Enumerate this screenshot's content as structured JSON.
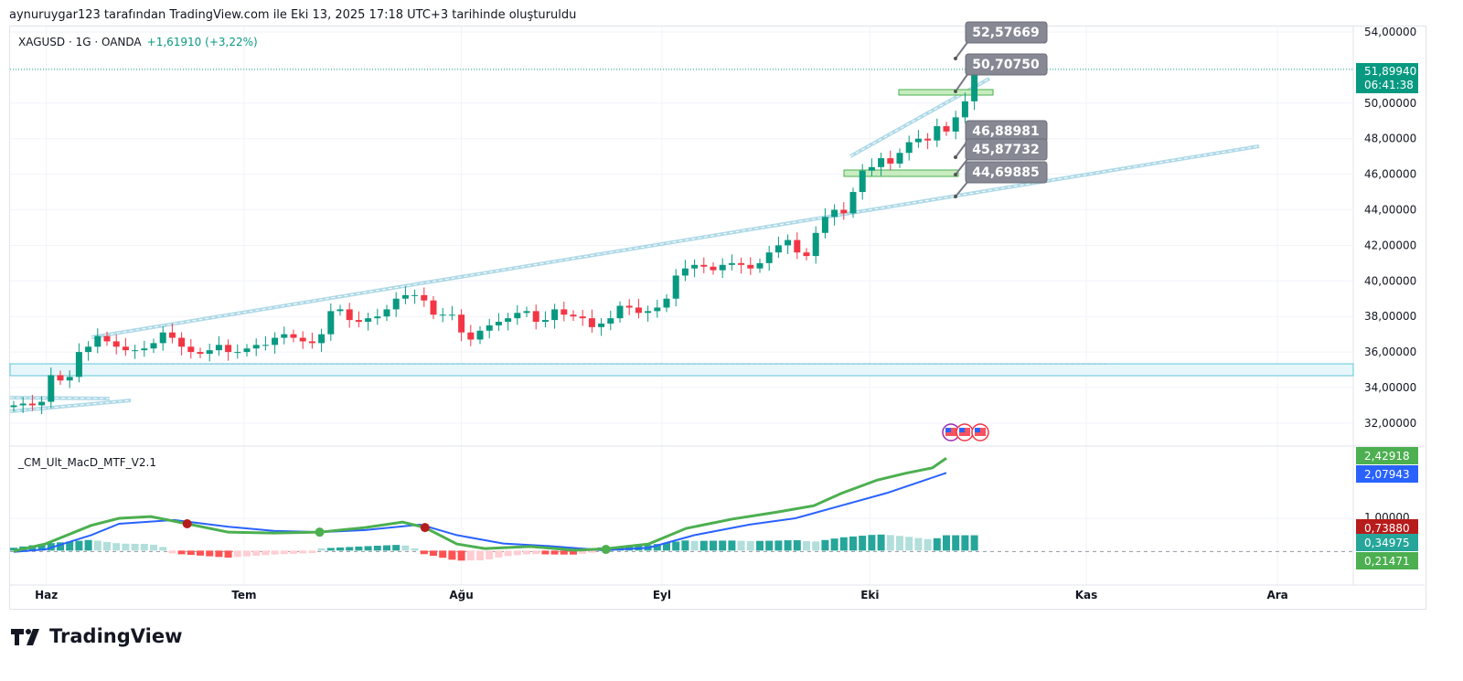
{
  "header": {
    "caption": "aynuruygar123 tarafından TradingView.com ile Eki 13, 2025 17:18 UTC+3 tarihinde oluşturuldu"
  },
  "symbol": {
    "name": "XAGUSD · 1G · OANDA",
    "change": "+1,61910 (+3,22%)"
  },
  "indicator": {
    "name": "_CM_Ult_MacD_MTF_V2.1"
  },
  "brand": {
    "name": "TradingView"
  },
  "colors": {
    "up": "#089981",
    "down": "#f23645",
    "macd": "#4caf50",
    "signal": "#2962ff",
    "trend": "#5fb4d0"
  },
  "chart_data": [
    {
      "type": "candlestick",
      "title": "XAGUSD · 1G · OANDA",
      "ylim": [
        31.5,
        55
      ],
      "price_ticks": [
        "54,00000",
        "50,00000",
        "48,00000",
        "46,00000",
        "44,00000",
        "42,00000",
        "40,00000",
        "38,00000",
        "36,00000",
        "34,00000",
        "32,00000"
      ],
      "price_tick_values": [
        54,
        50,
        48,
        46,
        44,
        42,
        40,
        38,
        36,
        34,
        32
      ],
      "time_ticks": [
        "Haz",
        "Tem",
        "Ağu",
        "Eyl",
        "Eki",
        "Kas",
        "Ara"
      ],
      "time_tick_bar_index": [
        3.5,
        24.7,
        48,
        69.5,
        91.8,
        115,
        135.5
      ],
      "close": [
        33.0,
        33.1,
        33.0,
        33.2,
        34.7,
        34.4,
        34.6,
        36.0,
        36.3,
        36.9,
        36.6,
        36.3,
        36.1,
        36.1,
        36.2,
        36.5,
        37.1,
        36.8,
        36.3,
        36.0,
        35.9,
        36.1,
        36.4,
        36.0,
        36.0,
        36.2,
        36.4,
        36.4,
        36.8,
        37.0,
        36.8,
        36.6,
        36.5,
        37.0,
        38.3,
        38.4,
        37.8,
        37.7,
        37.9,
        38.0,
        38.4,
        39.0,
        39.2,
        39.2,
        38.9,
        38.1,
        38.1,
        38.1,
        37.1,
        36.7,
        37.2,
        37.5,
        37.7,
        37.9,
        38.2,
        38.3,
        37.7,
        37.8,
        38.4,
        38.1,
        38.0,
        37.9,
        37.4,
        37.6,
        37.9,
        38.6,
        38.5,
        38.2,
        38.3,
        38.5,
        39.0,
        40.3,
        40.7,
        40.9,
        40.8,
        40.6,
        40.9,
        41.0,
        40.9,
        40.7,
        41.0,
        41.6,
        42.0,
        42.3,
        41.6,
        41.4,
        42.7,
        43.6,
        44.0,
        43.8,
        45.0,
        46.2,
        46.4,
        46.9,
        46.6,
        47.2,
        47.8,
        48.0,
        47.9,
        48.7,
        48.4,
        49.2,
        50.1,
        51.9
      ],
      "current_price": {
        "value": "51,89940",
        "countdown": "06:41:38",
        "numeric": 51.8994
      },
      "annotations": [
        {
          "label": "52,57669",
          "value": 52.57669
        },
        {
          "label": "50,70750",
          "value": 50.7075
        },
        {
          "label": "46,88981",
          "value": 46.88981
        },
        {
          "label": "45,87732",
          "value": 45.87732
        },
        {
          "label": "44,69885",
          "value": 44.69885
        }
      ]
    },
    {
      "type": "line",
      "title": "_CM_Ult_MacD_MTF_V2.1",
      "ylim": [
        -0.3,
        2.6
      ],
      "macd_points": [
        [
          0,
          0.22
        ],
        [
          3.4,
          0.39
        ],
        [
          8.3,
          0.83
        ],
        [
          11.3,
          1.0
        ],
        [
          14.7,
          1.04
        ],
        [
          18.6,
          0.87
        ],
        [
          23,
          0.67
        ],
        [
          27.9,
          0.65
        ],
        [
          32.8,
          0.67
        ],
        [
          37.7,
          0.78
        ],
        [
          41.7,
          0.91
        ],
        [
          44.1,
          0.78
        ],
        [
          47.5,
          0.39
        ],
        [
          50.5,
          0.28
        ],
        [
          55.4,
          0.33
        ],
        [
          60.3,
          0.24
        ],
        [
          63.7,
          0.28
        ],
        [
          68.1,
          0.39
        ],
        [
          72.1,
          0.76
        ],
        [
          77,
          0.98
        ],
        [
          81.9,
          1.15
        ],
        [
          85.8,
          1.3
        ],
        [
          88.7,
          1.59
        ],
        [
          92.6,
          1.91
        ],
        [
          95.6,
          2.07
        ],
        [
          98.5,
          2.2
        ],
        [
          100,
          2.43
        ]
      ],
      "signal_points": [
        [
          0,
          0.2
        ],
        [
          3.4,
          0.26
        ],
        [
          8.3,
          0.6
        ],
        [
          11.3,
          0.87
        ],
        [
          17.2,
          0.96
        ],
        [
          23,
          0.8
        ],
        [
          27.9,
          0.7
        ],
        [
          32.8,
          0.67
        ],
        [
          37.7,
          0.72
        ],
        [
          43.6,
          0.85
        ],
        [
          47.5,
          0.6
        ],
        [
          52.5,
          0.4
        ],
        [
          57.4,
          0.34
        ],
        [
          63.2,
          0.24
        ],
        [
          68.1,
          0.3
        ],
        [
          73,
          0.6
        ],
        [
          78.9,
          0.85
        ],
        [
          83.8,
          1.0
        ],
        [
          88.7,
          1.3
        ],
        [
          93.6,
          1.6
        ],
        [
          100,
          2.08
        ]
      ],
      "cross_points": [
        {
          "bar": 18.6,
          "value": 0.87,
          "type": "bear"
        },
        {
          "bar": 32.8,
          "value": 0.67,
          "type": "bull"
        },
        {
          "bar": 44.1,
          "value": 0.78,
          "type": "bear"
        },
        {
          "bar": 63.5,
          "value": 0.26,
          "type": "bull"
        }
      ],
      "value_labels": [
        {
          "label": "2,42918",
          "color": "#4caf50",
          "value": 2.43
        },
        {
          "label": "2,07943",
          "color": "#2962ff",
          "value": 2.08
        },
        {
          "label": "1,00000",
          "color": "none",
          "value": 1.0
        },
        {
          "label": "0,73880",
          "color": "#b71c1c",
          "value": 0.74
        },
        {
          "label": "0,34975",
          "color": "#26a69a",
          "value": 0.35
        },
        {
          "label": "0,21471",
          "color": "#4caf50",
          "value": 0.21
        }
      ]
    }
  ]
}
